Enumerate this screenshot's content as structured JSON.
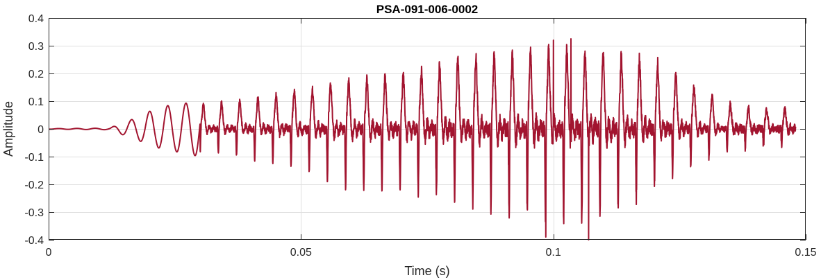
{
  "chart_data": {
    "type": "line",
    "title": "PSA-091-006-0002",
    "xlabel": "Time (s)",
    "ylabel": "Amplitude",
    "xlim": [
      0,
      0.15
    ],
    "ylim": [
      -0.4,
      0.4
    ],
    "xticks": [
      0,
      0.05,
      0.1,
      0.15
    ],
    "xtick_labels": [
      "0",
      "0.05",
      "0.1",
      "0.15"
    ],
    "yticks": [
      -0.4,
      -0.3,
      -0.2,
      -0.1,
      0,
      0.1,
      0.2,
      0.3,
      0.4
    ],
    "ytick_labels": [
      "-0.4",
      "-0.3",
      "-0.2",
      "-0.1",
      "0",
      "0.1",
      "0.2",
      "0.3",
      "0.4"
    ],
    "grid": true,
    "series": [
      {
        "color": "#a2142f",
        "x_range": [
          0,
          0.148
        ],
        "envelope_keypoints": {
          "t": [
            0,
            0.012,
            0.016,
            0.022,
            0.03,
            0.04,
            0.05,
            0.06,
            0.07,
            0.08,
            0.09,
            0.1,
            0.105,
            0.11,
            0.115,
            0.12,
            0.125,
            0.13,
            0.135,
            0.14,
            0.148
          ],
          "max": [
            0.001,
            0.003,
            0.03,
            0.08,
            0.1,
            0.12,
            0.16,
            0.2,
            0.22,
            0.28,
            0.3,
            0.32,
            0.32,
            0.31,
            0.3,
            0.28,
            0.22,
            0.15,
            0.1,
            0.08,
            0.08
          ],
          "min": [
            -0.001,
            -0.003,
            -0.03,
            -0.07,
            -0.1,
            -0.13,
            -0.17,
            -0.26,
            -0.27,
            -0.3,
            -0.36,
            -0.39,
            -0.4,
            -0.37,
            -0.33,
            -0.25,
            -0.2,
            -0.14,
            -0.1,
            -0.08,
            -0.09
          ]
        },
        "notable_peaks": [
          {
            "t": 0.1,
            "amplitude": 0.32
          },
          {
            "t": 0.1035,
            "amplitude": 0.325
          },
          {
            "t": 0.0985,
            "amplitude": -0.39
          },
          {
            "t": 0.107,
            "amplitude": -0.4
          }
        ],
        "fundamental_period_s": 0.0036
      }
    ]
  }
}
